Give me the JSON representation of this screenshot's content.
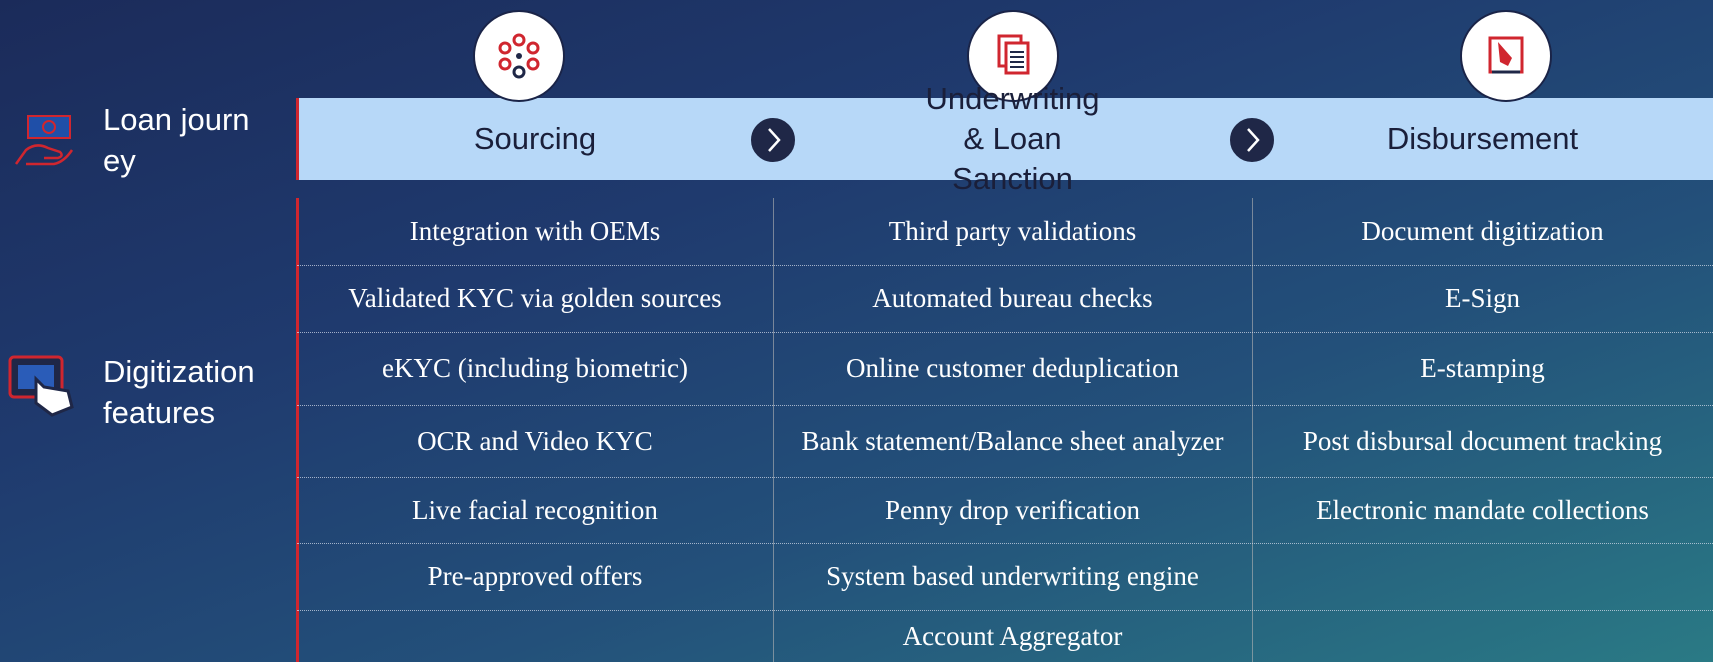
{
  "rows": [
    {
      "label": "Loan journey"
    },
    {
      "label": "Digitization features"
    }
  ],
  "columns": [
    {
      "title": "Sourcing",
      "items": [
        "Integration with OEMs",
        "Validated KYC via golden sources",
        "eKYC (including biometric)",
        "OCR and Video KYC",
        "Live facial recognition",
        "Pre-approved offers"
      ]
    },
    {
      "title": "Underwriting & Loan Sanction",
      "items": [
        "Third party validations",
        "Automated bureau checks",
        "Online customer deduplication",
        "Bank statement/Balance sheet analyzer",
        "Penny drop verification",
        "System based underwriting engine",
        "Account Aggregator"
      ]
    },
    {
      "title": "Disbursement",
      "items": [
        "Document digitization",
        "E-Sign",
        "E-stamping",
        "Post disbursal document tracking",
        "Electronic mandate collections"
      ]
    }
  ]
}
